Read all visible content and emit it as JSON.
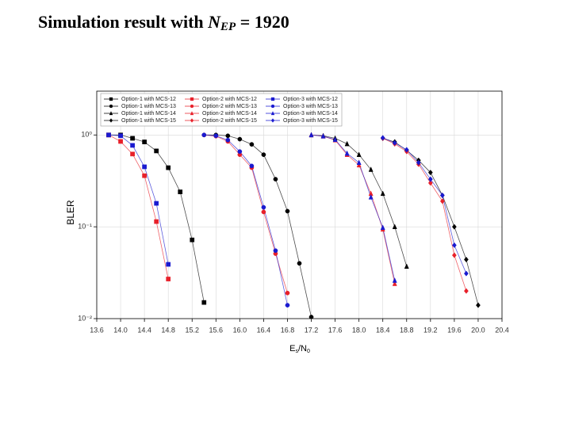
{
  "chart_data": {
    "type": "line",
    "title": {
      "text": "Simulation result with ",
      "symbol": "N",
      "subscript": "EP",
      "rest": " = 1920"
    },
    "ylabel": "BLER",
    "xlabel": {
      "main": "E",
      "sub": "s",
      "mid": "/N",
      "sub2": "0"
    },
    "ylog": true,
    "grid": true,
    "legend": "upper left",
    "xlim": [
      13.6,
      20.4
    ],
    "xticks": [
      13.6,
      {
        "value": 14,
        "label": "14.0"
      },
      14.4,
      14.8,
      15.2,
      15.6,
      {
        "value": 16,
        "label": "16.0"
      },
      16.4,
      16.8,
      17.2,
      17.6,
      {
        "value": 18,
        "label": "18.0"
      },
      18.4,
      18.8,
      19.2,
      19.6,
      {
        "value": 20,
        "label": "20.0"
      },
      20.4
    ],
    "ylim": [
      0.01,
      3
    ],
    "yticks": [
      {
        "value": 1,
        "label": "10⁰"
      },
      {
        "value": 0.1,
        "label": "10⁻¹"
      },
      {
        "value": 0.01,
        "label": "10⁻²"
      }
    ],
    "series": [
      {
        "name": "Option-1 with MCS-12",
        "color": "#000000",
        "marker": "square",
        "x": [
          13.8,
          14.0,
          14.2,
          14.4,
          14.6,
          14.8,
          15.0,
          15.2,
          15.4
        ],
        "values": [
          1.0,
          1.0,
          0.92,
          0.84,
          0.67,
          0.44,
          0.24,
          0.072,
          0.015
        ]
      },
      {
        "name": "Option-1 with MCS-13",
        "color": "#000000",
        "marker": "circle",
        "x": [
          15.4,
          15.6,
          15.8,
          16.0,
          16.2,
          16.4,
          16.6,
          16.8,
          17.0,
          17.2
        ],
        "values": [
          1.0,
          1.0,
          0.98,
          0.9,
          0.79,
          0.61,
          0.33,
          0.148,
          0.04,
          0.0104
        ]
      },
      {
        "name": "Option-1 with MCS-14",
        "color": "#000000",
        "marker": "triangle",
        "x": [
          17.2,
          17.4,
          17.6,
          17.8,
          18.0,
          18.2,
          18.4,
          18.6,
          18.8
        ],
        "values": [
          1.0,
          0.98,
          0.92,
          0.8,
          0.61,
          0.42,
          0.23,
          0.1,
          0.037
        ]
      },
      {
        "name": "Option-1 with MCS-15",
        "color": "#000000",
        "marker": "diamond",
        "x": [
          18.4,
          18.6,
          18.8,
          19.0,
          19.2,
          19.4,
          19.6,
          19.8,
          20.0
        ],
        "values": [
          0.92,
          0.84,
          0.68,
          0.53,
          0.39,
          0.22,
          0.1,
          0.044,
          0.014
        ]
      },
      {
        "name": "Option-2 with MCS-12",
        "color": "#e8202a",
        "marker": "square",
        "x": [
          13.8,
          14.0,
          14.2,
          14.4,
          14.6,
          14.8
        ],
        "values": [
          1.0,
          0.85,
          0.62,
          0.36,
          0.114,
          0.027
        ]
      },
      {
        "name": "Option-2 with MCS-13",
        "color": "#e8202a",
        "marker": "circle",
        "x": [
          15.4,
          15.6,
          15.8,
          16.0,
          16.2,
          16.4,
          16.6,
          16.8
        ],
        "values": [
          1.0,
          0.97,
          0.85,
          0.61,
          0.44,
          0.145,
          0.051,
          0.019
        ]
      },
      {
        "name": "Option-2 with MCS-14",
        "color": "#e8202a",
        "marker": "triangle",
        "x": [
          17.2,
          17.4,
          17.6,
          17.8,
          18.0,
          18.2,
          18.4,
          18.6
        ],
        "values": [
          1.0,
          0.97,
          0.88,
          0.61,
          0.47,
          0.23,
          0.094,
          0.024
        ]
      },
      {
        "name": "Option-2 with MCS-15",
        "color": "#e8202a",
        "marker": "diamond",
        "x": [
          18.4,
          18.6,
          18.8,
          19.0,
          19.2,
          19.4,
          19.6,
          19.8
        ],
        "values": [
          0.92,
          0.8,
          0.66,
          0.48,
          0.3,
          0.19,
          0.049,
          0.02
        ]
      },
      {
        "name": "Option-3 with MCS-12",
        "color": "#1a1ad0",
        "marker": "square",
        "x": [
          13.8,
          14.0,
          14.2,
          14.4,
          14.6,
          14.8
        ],
        "values": [
          1.0,
          0.98,
          0.77,
          0.45,
          0.18,
          0.039
        ]
      },
      {
        "name": "Option-3 with MCS-13",
        "color": "#1a1ad0",
        "marker": "circle",
        "x": [
          15.4,
          15.6,
          15.8,
          16.0,
          16.2,
          16.4,
          16.6,
          16.8
        ],
        "values": [
          1.0,
          0.98,
          0.88,
          0.66,
          0.46,
          0.163,
          0.055,
          0.014
        ]
      },
      {
        "name": "Option-3 with MCS-14",
        "color": "#1a1ad0",
        "marker": "triangle",
        "x": [
          17.2,
          17.4,
          17.6,
          17.8,
          18.0,
          18.2,
          18.4,
          18.6
        ],
        "values": [
          1.0,
          0.97,
          0.89,
          0.63,
          0.5,
          0.21,
          0.098,
          0.026
        ]
      },
      {
        "name": "Option-3 with MCS-15",
        "color": "#1a1ad0",
        "marker": "diamond",
        "x": [
          18.4,
          18.6,
          18.8,
          19.0,
          19.2,
          19.4,
          19.6,
          19.8
        ],
        "values": [
          0.93,
          0.82,
          0.69,
          0.5,
          0.33,
          0.22,
          0.063,
          0.031
        ]
      }
    ]
  }
}
